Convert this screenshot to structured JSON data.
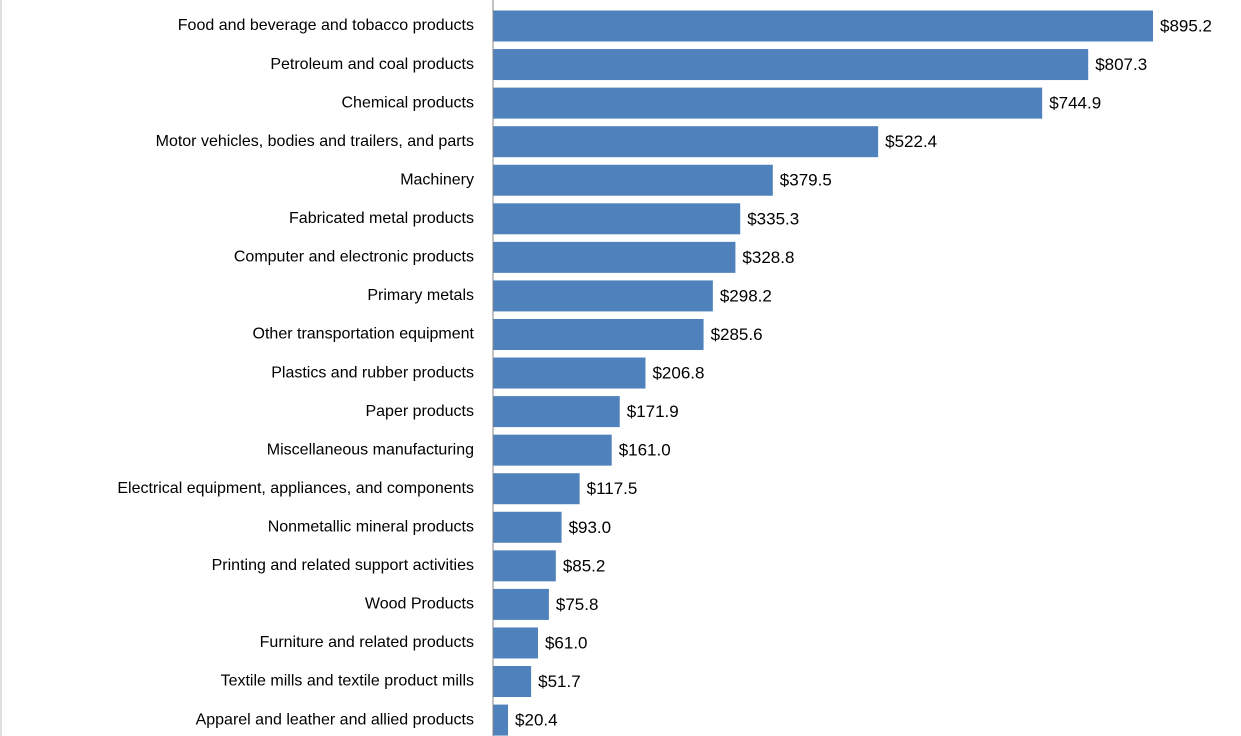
{
  "chart_data": {
    "type": "bar",
    "orientation": "horizontal",
    "categories": [
      "Food and beverage and tobacco products",
      "Petroleum and coal products",
      "Chemical products",
      "Motor vehicles, bodies and trailers, and parts",
      "Machinery",
      "Fabricated metal products",
      "Computer and electronic products",
      "Primary metals",
      "Other transportation equipment",
      "Plastics and rubber products",
      "Paper products",
      "Miscellaneous manufacturing",
      "Electrical equipment, appliances, and components",
      "Nonmetallic mineral products",
      "Printing and related support activities",
      "Wood Products",
      "Furniture and related products",
      "Textile mills and textile product mills",
      "Apparel and leather and allied products"
    ],
    "values": [
      895.2,
      807.3,
      744.9,
      522.4,
      379.5,
      335.3,
      328.8,
      298.2,
      285.6,
      206.8,
      171.9,
      161.0,
      117.5,
      93.0,
      85.2,
      75.8,
      61.0,
      51.7,
      20.4
    ],
    "value_labels": [
      "$895.2",
      "$807.3",
      "$744.9",
      "$522.4",
      "$379.5",
      "$335.3",
      "$328.8",
      "$298.2",
      "$285.6",
      "$206.8",
      "$171.9",
      "$161.0",
      "$117.5",
      "$93.0",
      "$85.2",
      "$75.8",
      "$61.0",
      "$51.7",
      "$20.4"
    ],
    "color": "#4f81bd"
  }
}
